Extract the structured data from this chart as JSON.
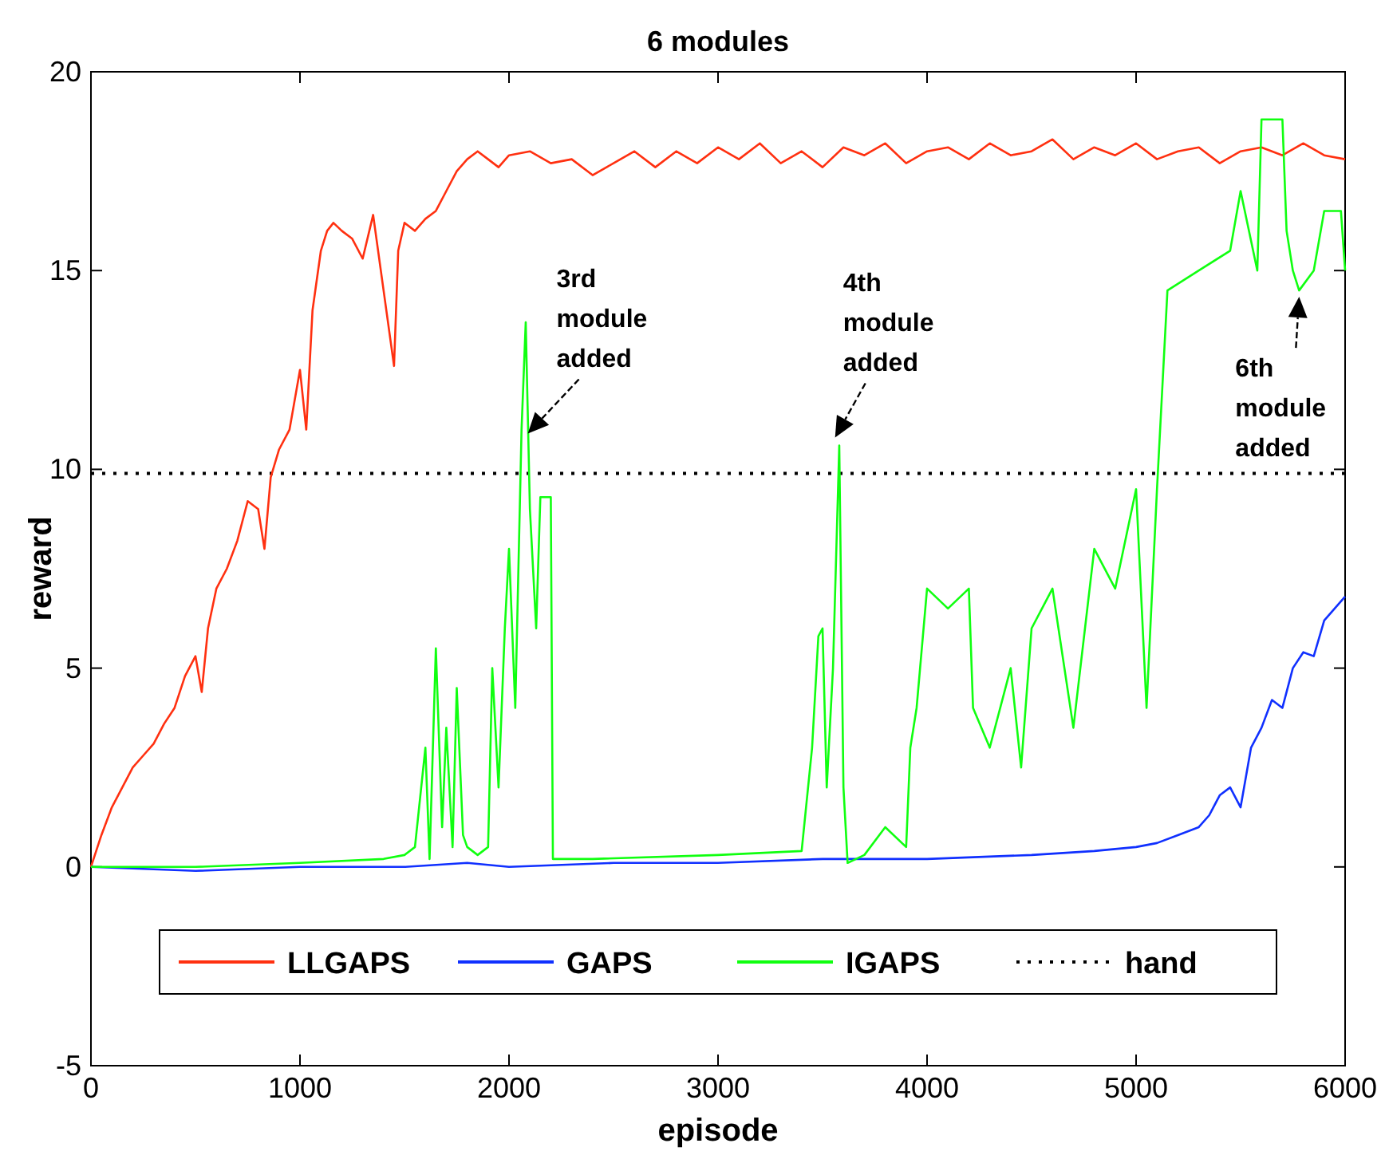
{
  "chart_data": {
    "type": "line",
    "title": "6 modules",
    "xlabel": "episode",
    "ylabel": "reward",
    "xlim": [
      0,
      6000
    ],
    "xticks": [
      0,
      1000,
      2000,
      3000,
      4000,
      5000,
      6000
    ],
    "ylim": [
      -5,
      20
    ],
    "yticks": [
      -5,
      0,
      5,
      10,
      15,
      20
    ],
    "grid": false,
    "legend": "bottom",
    "line_style": "solid",
    "marker": "none",
    "series": [
      {
        "name": "LLGAPS",
        "color": "#ff3010",
        "x": [
          0,
          50,
          100,
          150,
          200,
          250,
          300,
          350,
          400,
          450,
          500,
          530,
          560,
          600,
          650,
          700,
          750,
          800,
          830,
          860,
          900,
          950,
          1000,
          1030,
          1060,
          1100,
          1130,
          1160,
          1200,
          1250,
          1300,
          1350,
          1400,
          1450,
          1470,
          1500,
          1550,
          1600,
          1650,
          1700,
          1750,
          1800,
          1850,
          1900,
          1950,
          2000,
          2100,
          2200,
          2300,
          2400,
          2500,
          2600,
          2700,
          2800,
          2900,
          3000,
          3100,
          3200,
          3300,
          3400,
          3500,
          3600,
          3700,
          3800,
          3900,
          4000,
          4100,
          4200,
          4300,
          4400,
          4500,
          4600,
          4700,
          4800,
          4900,
          5000,
          5100,
          5200,
          5300,
          5400,
          5500,
          5600,
          5700,
          5800,
          5900,
          6000
        ],
        "values": [
          0,
          0.8,
          1.5,
          2,
          2.5,
          2.8,
          3.1,
          3.6,
          4,
          4.8,
          5.3,
          4.4,
          6,
          7,
          7.5,
          8.2,
          9.2,
          9,
          8,
          9.8,
          10.5,
          11,
          12.5,
          11,
          14,
          15.5,
          16,
          16.2,
          16,
          15.8,
          15.3,
          16.4,
          14.5,
          12.6,
          15.5,
          16.2,
          16,
          16.3,
          16.5,
          17,
          17.5,
          17.8,
          18,
          17.8,
          17.6,
          17.9,
          18,
          17.7,
          17.8,
          17.4,
          17.7,
          18,
          17.6,
          18,
          17.7,
          18.1,
          17.8,
          18.2,
          17.7,
          18,
          17.6,
          18.1,
          17.9,
          18.2,
          17.7,
          18,
          18.1,
          17.8,
          18.2,
          17.9,
          18,
          18.3,
          17.8,
          18.1,
          17.9,
          18.2,
          17.8,
          18,
          18.1,
          17.7,
          18,
          18.1,
          17.9,
          18.2,
          17.9,
          17.8
        ]
      },
      {
        "name": "GAPS",
        "color": "#1030ff",
        "x": [
          0,
          500,
          1000,
          1500,
          1800,
          2000,
          2500,
          3000,
          3500,
          4000,
          4500,
          4800,
          5000,
          5100,
          5200,
          5300,
          5350,
          5400,
          5450,
          5500,
          5550,
          5600,
          5650,
          5700,
          5750,
          5800,
          5850,
          5900,
          5950,
          6000
        ],
        "values": [
          0,
          -0.1,
          0,
          0,
          0.1,
          0,
          0.1,
          0.1,
          0.2,
          0.2,
          0.3,
          0.4,
          0.5,
          0.6,
          0.8,
          1,
          1.3,
          1.8,
          2,
          1.5,
          3,
          3.5,
          4.2,
          4,
          5,
          5.4,
          5.3,
          6.2,
          6.5,
          6.8
        ]
      },
      {
        "name": "IGAPS",
        "color": "#10ff10",
        "x": [
          0,
          500,
          1000,
          1400,
          1500,
          1550,
          1600,
          1620,
          1650,
          1680,
          1700,
          1730,
          1750,
          1780,
          1800,
          1850,
          1900,
          1920,
          1950,
          1980,
          2000,
          2030,
          2060,
          2080,
          2100,
          2130,
          2150,
          2200,
          2210,
          2400,
          3000,
          3400,
          3450,
          3480,
          3500,
          3520,
          3550,
          3580,
          3600,
          3620,
          3700,
          3800,
          3900,
          3920,
          3950,
          4000,
          4100,
          4200,
          4220,
          4300,
          4400,
          4450,
          4500,
          4600,
          4700,
          4800,
          4900,
          5000,
          5050,
          5100,
          5150,
          5300,
          5450,
          5500,
          5580,
          5600,
          5620,
          5700,
          5720,
          5750,
          5780,
          5850,
          5900,
          5980,
          6000
        ],
        "values": [
          0,
          0,
          0.1,
          0.2,
          0.3,
          0.5,
          3,
          0.2,
          5.5,
          1,
          3.5,
          0.5,
          4.5,
          0.8,
          0.5,
          0.3,
          0.5,
          5,
          2,
          6,
          8,
          4,
          11,
          13.7,
          9,
          6,
          9.3,
          9.3,
          0.2,
          0.2,
          0.3,
          0.4,
          3,
          5.8,
          6,
          2,
          5,
          10.6,
          2,
          0.1,
          0.3,
          1,
          0.5,
          3,
          4,
          7,
          6.5,
          7,
          4,
          3,
          5,
          2.5,
          6,
          7,
          3.5,
          8,
          7,
          9.5,
          4,
          9.5,
          14.5,
          15,
          15.5,
          17,
          15,
          18.8,
          18.8,
          18.8,
          16,
          15,
          14.5,
          15,
          16.5,
          16.5,
          15
        ]
      }
    ],
    "ref_lines": [
      {
        "axis": "y",
        "value": 9.9,
        "label": "hand",
        "color": "#000000",
        "line_style": "dotted"
      }
    ],
    "annotations": [
      {
        "text": "3rd\nmodule\nadded",
        "x": 2090,
        "y": 10.9
      },
      {
        "text": "4th\nmodule\nadded",
        "x": 3560,
        "y": 10.8
      },
      {
        "text": "6th\nmodule\nadded",
        "x": 5780,
        "y": 14.5
      }
    ]
  }
}
